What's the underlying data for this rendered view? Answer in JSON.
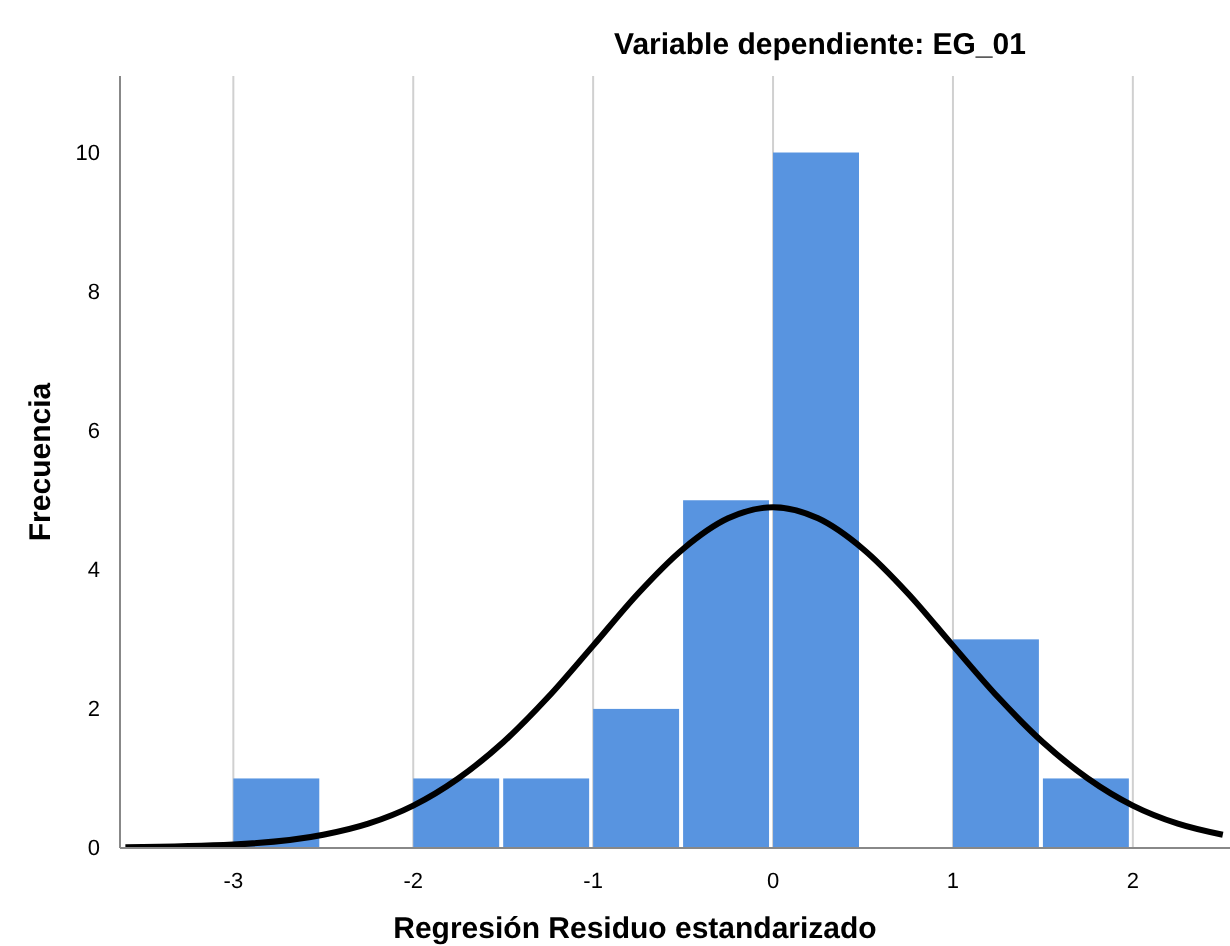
{
  "chart_data": {
    "type": "histogram",
    "subtitle": "Variable dependiente: EG_01",
    "xlabel": "Regresión Residuo estandarizado",
    "ylabel": "Frecuencia",
    "xlim": [
      -3.63,
      2.54
    ],
    "xticks": [
      -3,
      -2,
      -1,
      0,
      1,
      2
    ],
    "ylim": [
      0,
      11.1
    ],
    "yticks": [
      0,
      2,
      4,
      6,
      8,
      10
    ],
    "grid": "x",
    "series": [
      {
        "color": "#5894e0",
        "bins": [
          -3,
          -2.5,
          -2,
          -1.5,
          -1,
          -0.5,
          0,
          0.5,
          1,
          1.5,
          2
        ],
        "values": [
          1,
          0,
          1,
          1,
          2,
          5,
          10,
          0,
          3,
          1
        ]
      },
      {
        "type": "line",
        "color": "#000000",
        "x": [
          -3.6,
          -3,
          -2.5,
          -2.25,
          -2,
          -1.75,
          -1.5,
          -1.25,
          -1,
          -0.75,
          -0.5,
          -0.25,
          0,
          0.25,
          0.5,
          0.75,
          1,
          1.25,
          1.5,
          1.75,
          2,
          2.25,
          2.5
        ],
        "values": [
          0.01,
          0.05,
          0.19,
          0.35,
          0.61,
          1.0,
          1.52,
          2.17,
          2.91,
          3.66,
          4.3,
          4.74,
          4.9,
          4.74,
          4.3,
          3.66,
          2.91,
          2.17,
          1.52,
          1.0,
          0.61,
          0.35,
          0.19
        ]
      }
    ]
  }
}
